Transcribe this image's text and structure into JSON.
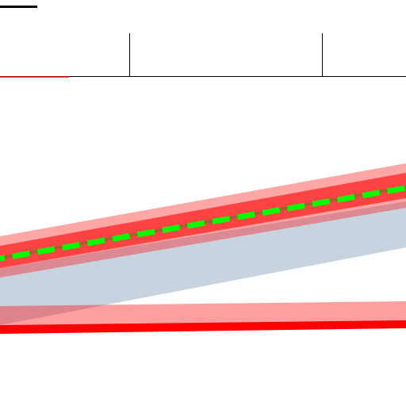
{
  "colors": {
    "background": "#ffffff",
    "ink": "#000000",
    "red": "#ff0000",
    "red_translucent": "#ff0000",
    "slate_band": "#c5d1de",
    "green_dashes": "#00ff00"
  }
}
